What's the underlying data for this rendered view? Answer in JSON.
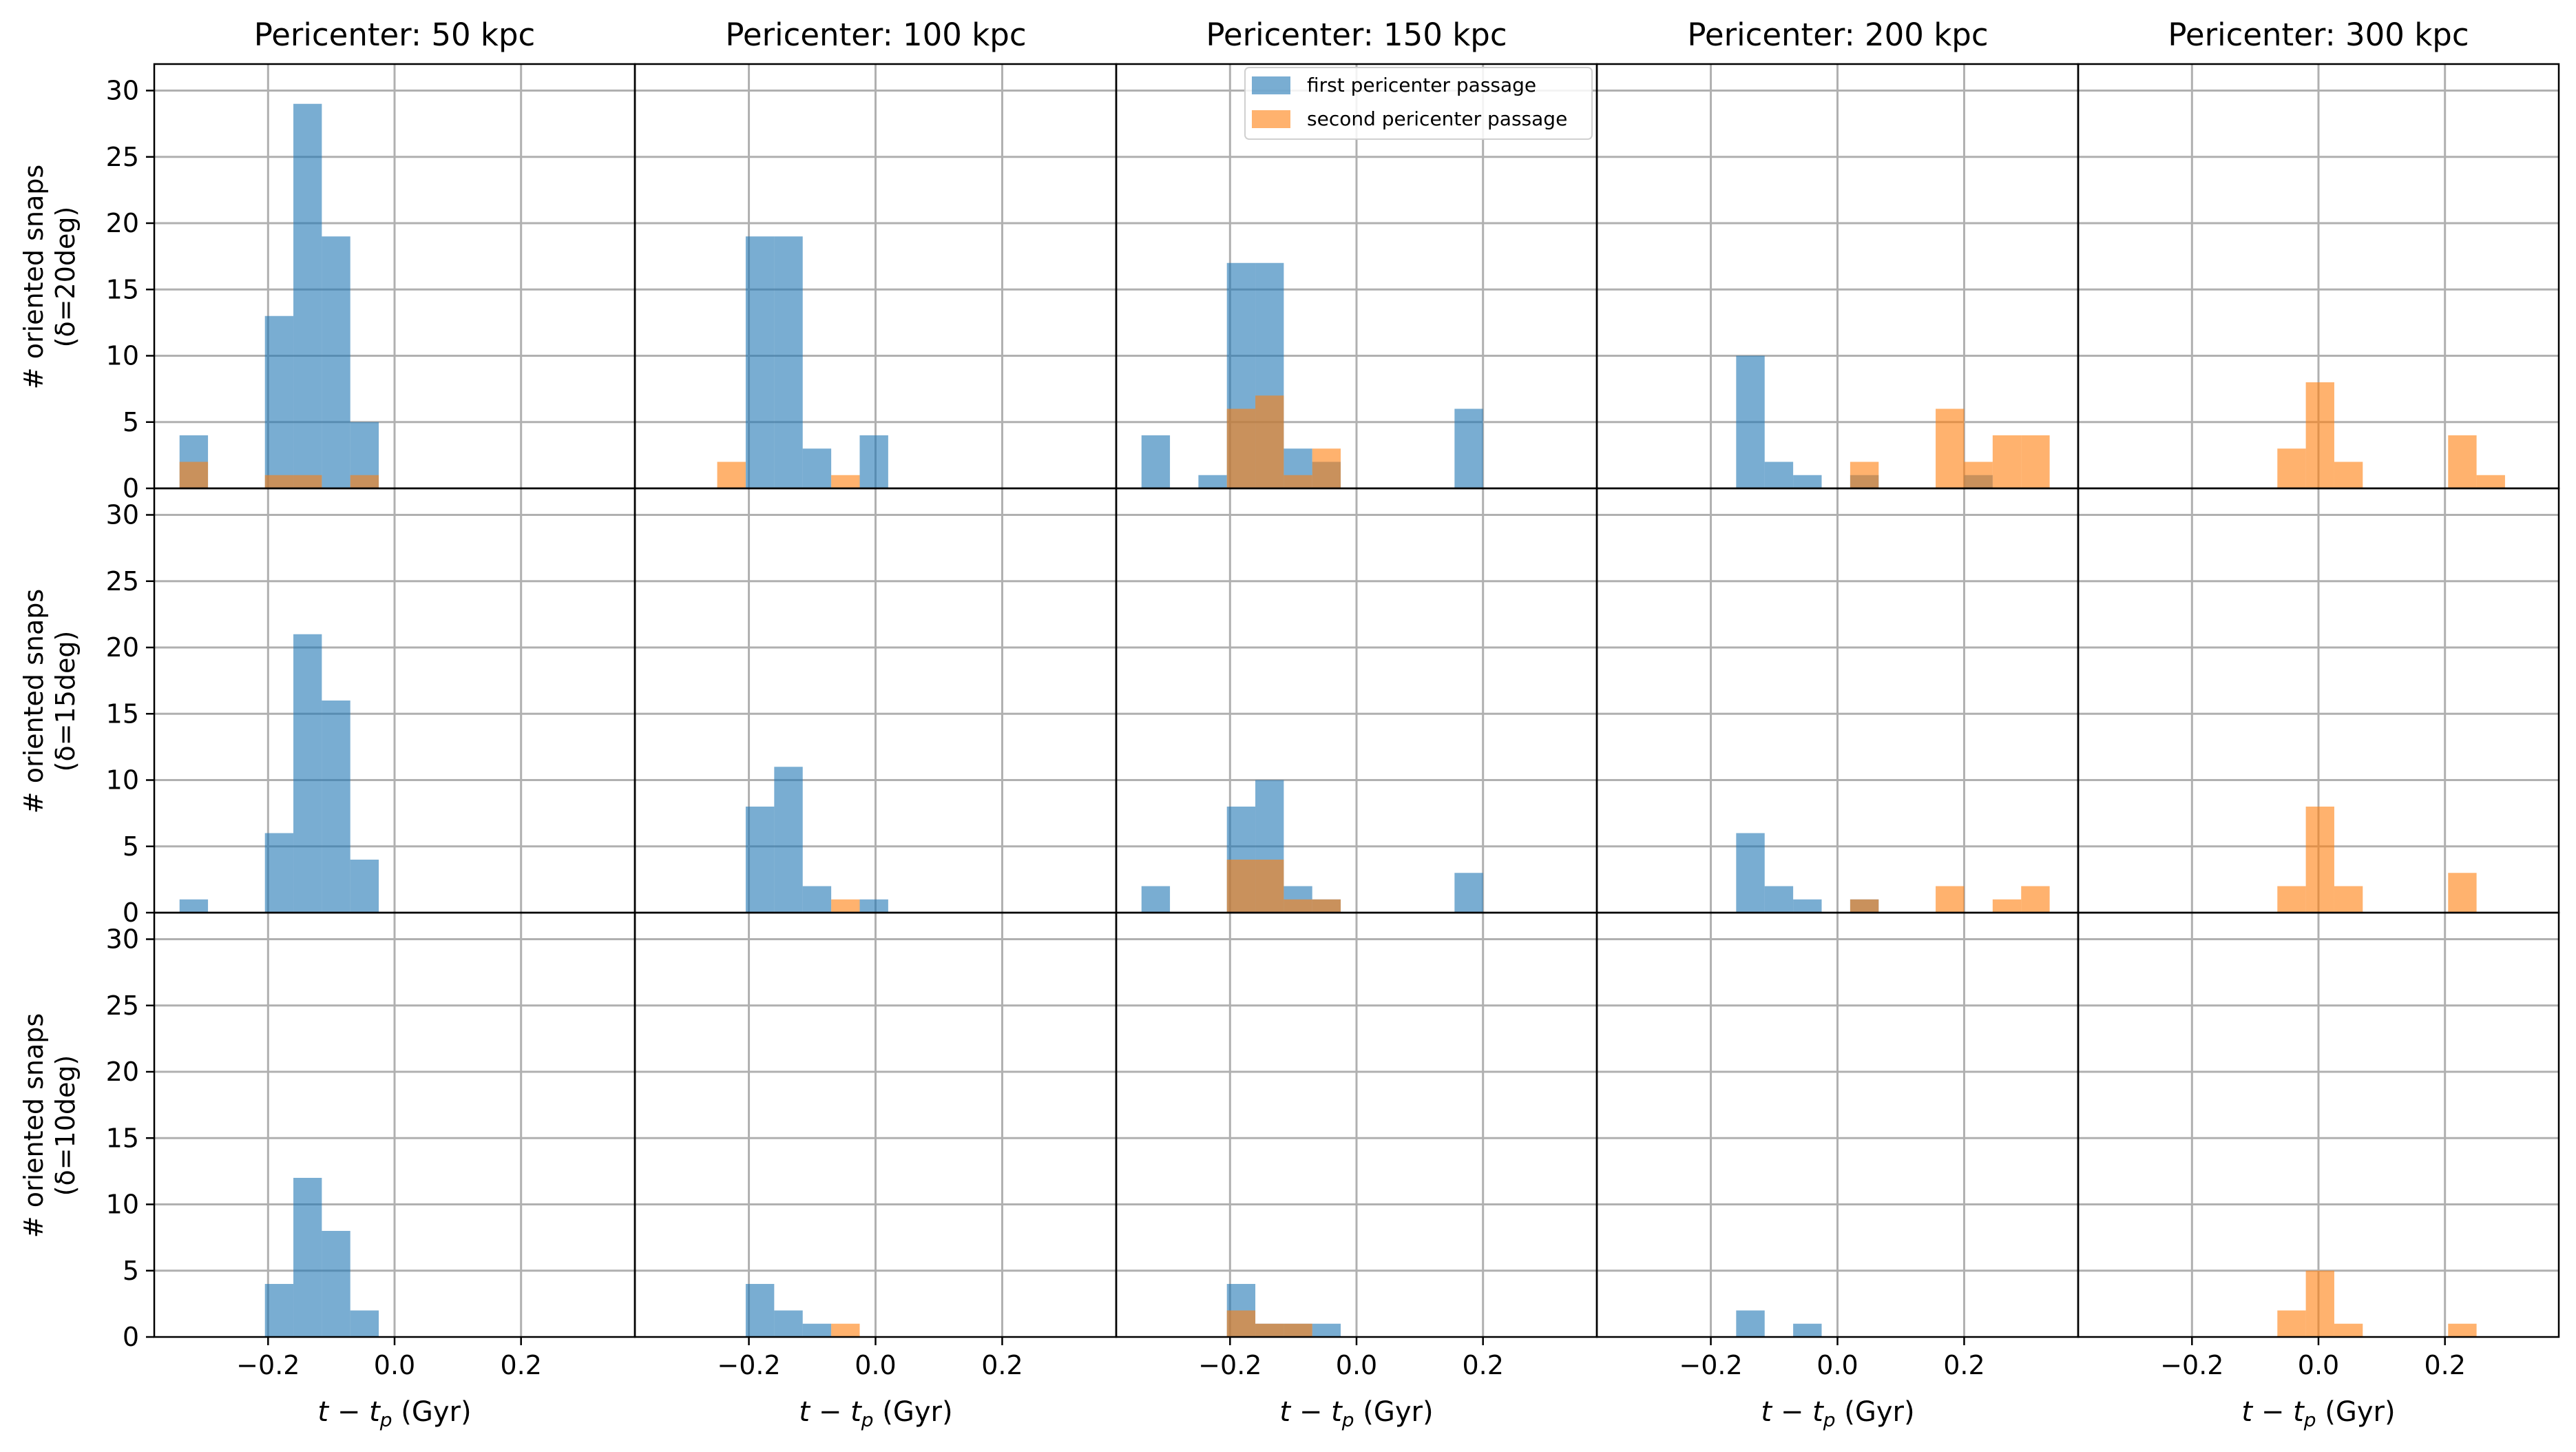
{
  "figure": {
    "column_titles": [
      "Pericenter: 50 kpc",
      "Pericenter: 100 kpc",
      "Pericenter: 150 kpc",
      "Pericenter: 200 kpc",
      "Pericenter: 300 kpc"
    ],
    "row_ylabels": [
      [
        "# oriented snaps",
        "(δ=20deg)"
      ],
      [
        "# oriented snaps",
        "(δ=15deg)"
      ],
      [
        "# oriented snaps",
        "(δ=10deg)"
      ]
    ],
    "xlabel": "t − t_p (Gyr)",
    "xlabel_parts": {
      "t": "t",
      "minus": " − ",
      "tp": "t",
      "sub": "p",
      "unit": " (Gyr)"
    },
    "legend": {
      "placement": "upper-center of Pericenter: 150 kpc column, top row",
      "entries": [
        "first pericenter passage",
        "second pericenter passage"
      ]
    },
    "colors": {
      "first": "#1f77b4",
      "second": "#ff7f0e",
      "grid": "#b0b0b0",
      "axes": "#000000"
    },
    "bar_alpha": 0.6
  },
  "chart_data": {
    "type": "bar",
    "layout": "3 rows x 5 columns of histograms, shared axes",
    "xlim": [
      -0.38,
      0.38
    ],
    "ylim": [
      0,
      32
    ],
    "xticks": [
      -0.2,
      0.0,
      0.2
    ],
    "xtick_labels": [
      "−0.2",
      "0.0",
      "0.2"
    ],
    "yticks": [
      0,
      5,
      10,
      15,
      20,
      25,
      30
    ],
    "grid": true,
    "bin_width": 0.045,
    "series_names": [
      "first pericenter passage",
      "second pericenter passage"
    ],
    "panels": [
      {
        "row": 0,
        "col": 0,
        "series": [
          {
            "name": "first pericenter passage",
            "bins": [
              [
                -0.34,
                4
              ],
              [
                -0.205,
                13
              ],
              [
                -0.16,
                29
              ],
              [
                -0.115,
                19
              ],
              [
                -0.07,
                5
              ]
            ]
          },
          {
            "name": "second pericenter passage",
            "bins": [
              [
                -0.34,
                2
              ],
              [
                -0.205,
                1
              ],
              [
                -0.16,
                1
              ],
              [
                -0.07,
                1
              ]
            ]
          }
        ]
      },
      {
        "row": 0,
        "col": 1,
        "series": [
          {
            "name": "first pericenter passage",
            "bins": [
              [
                -0.205,
                19
              ],
              [
                -0.16,
                19
              ],
              [
                -0.115,
                3
              ],
              [
                -0.025,
                4
              ]
            ]
          },
          {
            "name": "second pericenter passage",
            "bins": [
              [
                -0.25,
                2
              ],
              [
                -0.07,
                1
              ]
            ]
          }
        ]
      },
      {
        "row": 0,
        "col": 2,
        "series": [
          {
            "name": "first pericenter passage",
            "bins": [
              [
                -0.34,
                4
              ],
              [
                -0.25,
                1
              ],
              [
                -0.205,
                17
              ],
              [
                -0.16,
                17
              ],
              [
                -0.115,
                3
              ],
              [
                -0.07,
                2
              ],
              [
                0.155,
                6
              ]
            ]
          },
          {
            "name": "second pericenter passage",
            "bins": [
              [
                -0.205,
                6
              ],
              [
                -0.16,
                7
              ],
              [
                -0.115,
                1
              ],
              [
                -0.07,
                3
              ]
            ]
          }
        ]
      },
      {
        "row": 0,
        "col": 3,
        "series": [
          {
            "name": "first pericenter passage",
            "bins": [
              [
                -0.16,
                10
              ],
              [
                -0.115,
                2
              ],
              [
                -0.07,
                1
              ],
              [
                0.02,
                1
              ],
              [
                0.2,
                1
              ]
            ]
          },
          {
            "name": "second pericenter passage",
            "bins": [
              [
                0.02,
                2
              ],
              [
                0.155,
                6
              ],
              [
                0.2,
                2
              ],
              [
                0.245,
                4
              ],
              [
                0.29,
                4
              ]
            ]
          }
        ]
      },
      {
        "row": 0,
        "col": 4,
        "series": [
          {
            "name": "first pericenter passage",
            "bins": []
          },
          {
            "name": "second pericenter passage",
            "bins": [
              [
                -0.065,
                3
              ],
              [
                -0.02,
                8
              ],
              [
                0.025,
                2
              ],
              [
                0.205,
                4
              ],
              [
                0.25,
                1
              ]
            ]
          }
        ]
      },
      {
        "row": 1,
        "col": 0,
        "series": [
          {
            "name": "first pericenter passage",
            "bins": [
              [
                -0.34,
                1
              ],
              [
                -0.205,
                6
              ],
              [
                -0.16,
                21
              ],
              [
                -0.115,
                16
              ],
              [
                -0.07,
                4
              ]
            ]
          },
          {
            "name": "second pericenter passage",
            "bins": []
          }
        ]
      },
      {
        "row": 1,
        "col": 1,
        "series": [
          {
            "name": "first pericenter passage",
            "bins": [
              [
                -0.205,
                8
              ],
              [
                -0.16,
                11
              ],
              [
                -0.115,
                2
              ],
              [
                -0.025,
                1
              ]
            ]
          },
          {
            "name": "second pericenter passage",
            "bins": [
              [
                -0.07,
                1
              ]
            ]
          }
        ]
      },
      {
        "row": 1,
        "col": 2,
        "series": [
          {
            "name": "first pericenter passage",
            "bins": [
              [
                -0.34,
                2
              ],
              [
                -0.205,
                8
              ],
              [
                -0.16,
                10
              ],
              [
                -0.115,
                2
              ],
              [
                -0.07,
                1
              ],
              [
                0.155,
                3
              ]
            ]
          },
          {
            "name": "second pericenter passage",
            "bins": [
              [
                -0.205,
                4
              ],
              [
                -0.16,
                4
              ],
              [
                -0.115,
                1
              ],
              [
                -0.07,
                1
              ]
            ]
          }
        ]
      },
      {
        "row": 1,
        "col": 3,
        "series": [
          {
            "name": "first pericenter passage",
            "bins": [
              [
                -0.16,
                6
              ],
              [
                -0.115,
                2
              ],
              [
                -0.07,
                1
              ],
              [
                0.02,
                1
              ]
            ]
          },
          {
            "name": "second pericenter passage",
            "bins": [
              [
                0.02,
                1
              ],
              [
                0.155,
                2
              ],
              [
                0.245,
                1
              ],
              [
                0.29,
                2
              ]
            ]
          }
        ]
      },
      {
        "row": 1,
        "col": 4,
        "series": [
          {
            "name": "first pericenter passage",
            "bins": []
          },
          {
            "name": "second pericenter passage",
            "bins": [
              [
                -0.065,
                2
              ],
              [
                -0.02,
                8
              ],
              [
                0.025,
                2
              ],
              [
                0.205,
                3
              ]
            ]
          }
        ]
      },
      {
        "row": 2,
        "col": 0,
        "series": [
          {
            "name": "first pericenter passage",
            "bins": [
              [
                -0.205,
                4
              ],
              [
                -0.16,
                12
              ],
              [
                -0.115,
                8
              ],
              [
                -0.07,
                2
              ]
            ]
          },
          {
            "name": "second pericenter passage",
            "bins": []
          }
        ]
      },
      {
        "row": 2,
        "col": 1,
        "series": [
          {
            "name": "first pericenter passage",
            "bins": [
              [
                -0.205,
                4
              ],
              [
                -0.16,
                2
              ],
              [
                -0.115,
                1
              ]
            ]
          },
          {
            "name": "second pericenter passage",
            "bins": [
              [
                -0.07,
                1
              ]
            ]
          }
        ]
      },
      {
        "row": 2,
        "col": 2,
        "series": [
          {
            "name": "first pericenter passage",
            "bins": [
              [
                -0.205,
                4
              ],
              [
                -0.16,
                1
              ],
              [
                -0.115,
                1
              ],
              [
                -0.07,
                1
              ]
            ]
          },
          {
            "name": "second pericenter passage",
            "bins": [
              [
                -0.205,
                2
              ],
              [
                -0.16,
                1
              ],
              [
                -0.115,
                1
              ]
            ]
          }
        ]
      },
      {
        "row": 2,
        "col": 3,
        "series": [
          {
            "name": "first pericenter passage",
            "bins": [
              [
                -0.16,
                2
              ],
              [
                -0.07,
                1
              ]
            ]
          },
          {
            "name": "second pericenter passage",
            "bins": []
          }
        ]
      },
      {
        "row": 2,
        "col": 4,
        "series": [
          {
            "name": "first pericenter passage",
            "bins": []
          },
          {
            "name": "second pericenter passage",
            "bins": [
              [
                -0.065,
                2
              ],
              [
                -0.02,
                5
              ],
              [
                0.025,
                1
              ],
              [
                0.205,
                1
              ]
            ]
          }
        ]
      }
    ]
  }
}
